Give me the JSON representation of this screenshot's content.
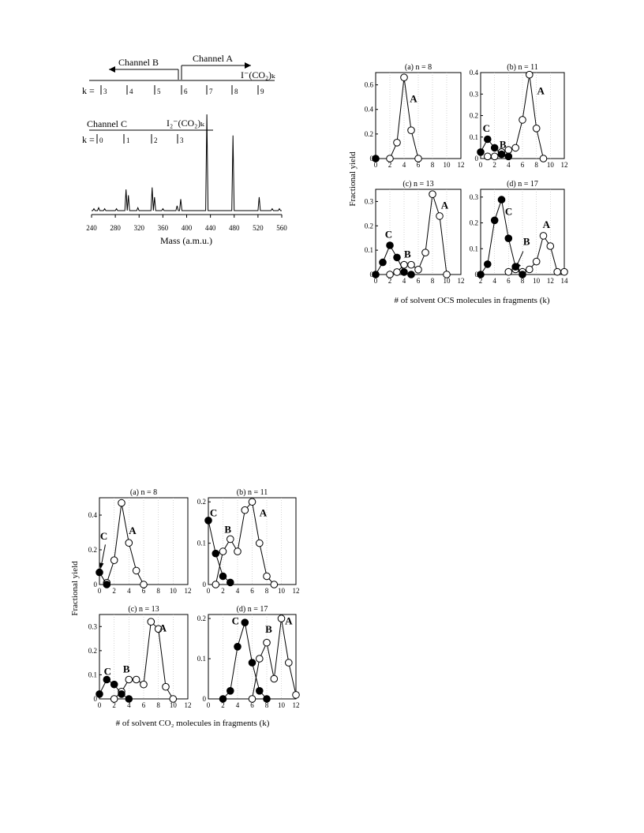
{
  "chart_data": [
    {
      "type": "line",
      "title": "",
      "xlabel": "Mass (a.m.u.)",
      "ylabel": "",
      "xlim": [
        240,
        560
      ],
      "x_ticks": [
        "240",
        "280",
        "320",
        "360",
        "400",
        "440",
        "480",
        "520",
        "560"
      ],
      "annotations": {
        "channel_a": "Channel A",
        "channel_b": "Channel B",
        "channel_c": "Channel C",
        "k_label": "k =",
        "ion_a": "I⁻(CO₂)ₖ",
        "ion_c": "I₂⁻(CO₂)ₖ",
        "k_ticks_a": [
          "3",
          "4",
          "5",
          "6",
          "7",
          "8",
          "9"
        ],
        "k_ticks_c": [
          "0",
          "1",
          "2",
          "3"
        ]
      },
      "series": [
        {
          "values": [
            [
              244,
              0.02
            ],
            [
              252,
              0.03
            ],
            [
              262,
              0.02
            ],
            [
              282,
              0.02
            ],
            [
              298,
              0.22
            ],
            [
              302,
              0.16
            ],
            [
              318,
              0.03
            ],
            [
              342,
              0.24
            ],
            [
              346,
              0.14
            ],
            [
              360,
              0.02
            ],
            [
              384,
              0.05
            ],
            [
              390,
              0.12
            ],
            [
              434,
              1.0
            ],
            [
              478,
              0.78
            ],
            [
              522,
              0.14
            ],
            [
              544,
              0.02
            ],
            [
              556,
              0.02
            ]
          ]
        }
      ]
    },
    {
      "type": "scatter",
      "figure": "OCS",
      "ylabel": "Fractional yield",
      "xlabel": "# of solvent OCS molecules in fragments (k)",
      "panels": [
        {
          "title": "(a) n = 8",
          "xlim": [
            0,
            12
          ],
          "ylim": [
            0,
            0.7
          ],
          "x_ticks": [
            "0",
            "2",
            "4",
            "6",
            "8",
            "10",
            "12"
          ],
          "y_ticks": [
            "0",
            "0.2",
            "0.4",
            "0.6"
          ],
          "labels": [
            "A"
          ],
          "series": [
            {
              "marker": "open",
              "x": [
                2,
                3,
                4,
                5,
                6
              ],
              "y": [
                0.0,
                0.13,
                0.66,
                0.23,
                0.0
              ]
            },
            {
              "marker": "filled",
              "x": [
                0
              ],
              "y": [
                0.0
              ]
            }
          ]
        },
        {
          "title": "(b) n = 11",
          "xlim": [
            0,
            12
          ],
          "ylim": [
            0,
            0.4
          ],
          "x_ticks": [
            "0",
            "2",
            "4",
            "6",
            "8",
            "10",
            "12"
          ],
          "y_ticks": [
            "0",
            "0.1",
            "0.2",
            "0.3",
            "0.4"
          ],
          "labels": [
            "A",
            "B",
            "C"
          ],
          "series": [
            {
              "marker": "open",
              "x": [
                1,
                2,
                3,
                4,
                5,
                6,
                7,
                8,
                9
              ],
              "y": [
                0.01,
                0.01,
                0.03,
                0.04,
                0.05,
                0.18,
                0.39,
                0.14,
                0.0
              ]
            },
            {
              "marker": "filled",
              "x": [
                0,
                1,
                2,
                3,
                4
              ],
              "y": [
                0.03,
                0.09,
                0.05,
                0.02,
                0.01
              ]
            }
          ]
        },
        {
          "title": "(c) n = 13",
          "xlim": [
            0,
            12
          ],
          "ylim": [
            0,
            0.35
          ],
          "x_ticks": [
            "0",
            "2",
            "4",
            "6",
            "8",
            "10",
            "12"
          ],
          "y_ticks": [
            "0",
            "0.1",
            "0.2",
            "0.3"
          ],
          "labels": [
            "A",
            "B",
            "C"
          ],
          "series": [
            {
              "marker": "open",
              "x": [
                2,
                3,
                4,
                5,
                6,
                7,
                8,
                9,
                10
              ],
              "y": [
                0.0,
                0.01,
                0.04,
                0.04,
                0.02,
                0.09,
                0.33,
                0.24,
                0.0
              ]
            },
            {
              "marker": "filled",
              "x": [
                0,
                1,
                2,
                3,
                4,
                5
              ],
              "y": [
                0.0,
                0.05,
                0.12,
                0.07,
                0.01,
                0.0
              ]
            }
          ]
        },
        {
          "title": "(d) n = 17",
          "xlim": [
            2,
            14
          ],
          "ylim": [
            0,
            0.33
          ],
          "x_ticks": [
            "2",
            "4",
            "6",
            "8",
            "10",
            "12",
            "14"
          ],
          "y_ticks": [
            "0",
            "0.1",
            "0.2",
            "0.3"
          ],
          "labels": [
            "A",
            "B",
            "C"
          ],
          "series": [
            {
              "marker": "open",
              "x": [
                6,
                7,
                8,
                9,
                10,
                11,
                12,
                13,
                14
              ],
              "y": [
                0.01,
                0.02,
                0.01,
                0.02,
                0.05,
                0.15,
                0.11,
                0.01,
                0.01
              ]
            },
            {
              "marker": "filled",
              "x": [
                2,
                3,
                4,
                5,
                6,
                7,
                8
              ],
              "y": [
                0.0,
                0.04,
                0.21,
                0.29,
                0.14,
                0.03,
                0.0
              ]
            }
          ]
        }
      ]
    },
    {
      "type": "scatter",
      "figure": "CO2",
      "ylabel": "Fractional yield",
      "xlabel": "# of solvent CO₂ molecules in fragments (k)",
      "panels": [
        {
          "title": "(a) n = 8",
          "xlim": [
            0,
            12
          ],
          "ylim": [
            0,
            0.5
          ],
          "x_ticks": [
            "0",
            "2",
            "4",
            "6",
            "8",
            "10",
            "12"
          ],
          "y_ticks": [
            "0",
            "0.2",
            "0.4"
          ],
          "labels": [
            "A",
            "C"
          ],
          "series": [
            {
              "marker": "open",
              "x": [
                1,
                2,
                3,
                4,
                5,
                6
              ],
              "y": [
                0.01,
                0.14,
                0.47,
                0.24,
                0.08,
                0.0
              ]
            },
            {
              "marker": "filled",
              "x": [
                0,
                1
              ],
              "y": [
                0.07,
                0.0
              ]
            }
          ]
        },
        {
          "title": "(b) n = 11",
          "xlim": [
            0,
            12
          ],
          "ylim": [
            0,
            0.21
          ],
          "x_ticks": [
            "0",
            "2",
            "4",
            "6",
            "8",
            "10",
            "12"
          ],
          "y_ticks": [
            "0",
            "0.1",
            "0.2"
          ],
          "labels": [
            "A",
            "B",
            "C"
          ],
          "series": [
            {
              "marker": "open",
              "x": [
                1,
                2,
                3,
                4,
                5,
                6,
                7,
                8,
                9
              ],
              "y": [
                0.0,
                0.08,
                0.11,
                0.08,
                0.18,
                0.2,
                0.1,
                0.02,
                0.0
              ]
            },
            {
              "marker": "filled",
              "x": [
                0,
                1,
                2,
                3
              ],
              "y": [
                0.155,
                0.075,
                0.02,
                0.005
              ]
            }
          ]
        },
        {
          "title": "(c) n = 13",
          "xlim": [
            0,
            12
          ],
          "ylim": [
            0,
            0.35
          ],
          "x_ticks": [
            "0",
            "2",
            "4",
            "6",
            "8",
            "10",
            "12"
          ],
          "y_ticks": [
            "0",
            "0.1",
            "0.2",
            "0.3"
          ],
          "labels": [
            "A",
            "B",
            "C"
          ],
          "series": [
            {
              "marker": "open",
              "x": [
                2,
                3,
                4,
                5,
                6,
                7,
                8,
                9,
                10
              ],
              "y": [
                0.0,
                0.03,
                0.08,
                0.08,
                0.06,
                0.32,
                0.29,
                0.05,
                0.0
              ]
            },
            {
              "marker": "filled",
              "x": [
                0,
                1,
                2,
                3,
                4
              ],
              "y": [
                0.02,
                0.08,
                0.06,
                0.02,
                0.0
              ]
            }
          ]
        },
        {
          "title": "(d) n = 17",
          "xlim": [
            0,
            12
          ],
          "ylim": [
            0,
            0.21
          ],
          "x_ticks": [
            "0",
            "2",
            "4",
            "6",
            "8",
            "10",
            "12"
          ],
          "y_ticks": [
            "0",
            "0.1",
            "0.2"
          ],
          "labels": [
            "A",
            "B",
            "C"
          ],
          "series": [
            {
              "marker": "open",
              "x": [
                6,
                7,
                8,
                9,
                10,
                11,
                12
              ],
              "y": [
                0.0,
                0.1,
                0.14,
                0.05,
                0.2,
                0.09,
                0.01
              ]
            },
            {
              "marker": "filled",
              "x": [
                2,
                3,
                4,
                5,
                6,
                7,
                8
              ],
              "y": [
                0.0,
                0.02,
                0.13,
                0.19,
                0.09,
                0.02,
                0.0
              ]
            }
          ]
        }
      ]
    }
  ]
}
